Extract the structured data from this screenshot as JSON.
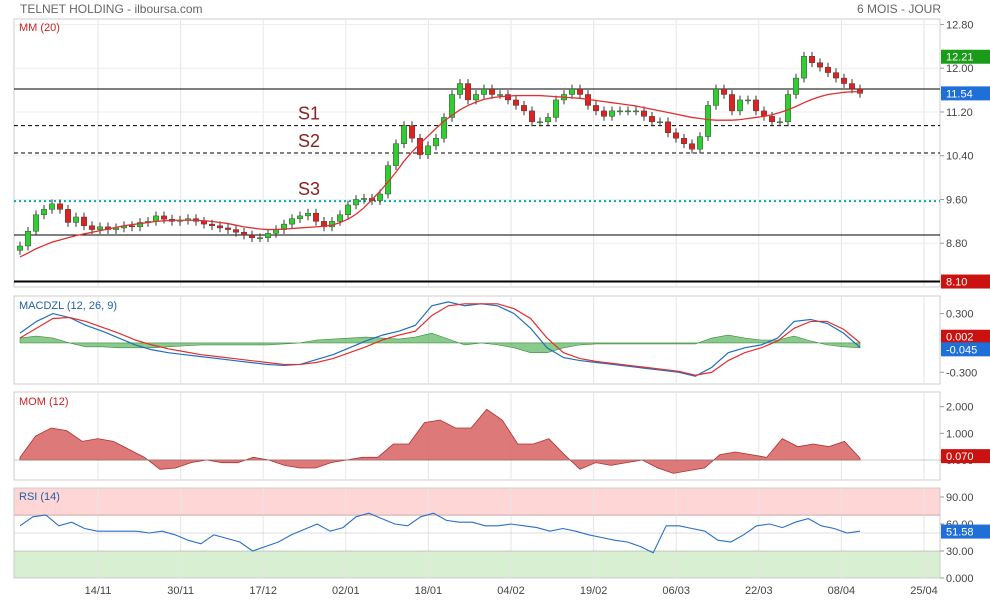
{
  "header": {
    "title": "TELNET HOLDING - ilboursa.com",
    "period": "6 MOIS - JOUR"
  },
  "colors": {
    "up": "#33cc33",
    "down": "#dd2222",
    "ma": "#e03030",
    "macd_line": "#1f6fc0",
    "signal_line": "#e03030",
    "histogram": "#4caf50",
    "mom_fill": "#d96a6a",
    "rsi_line": "#2a6fc9",
    "support": "#000000",
    "s3_line": "#00aaaa",
    "last_label": "#1e6fd8",
    "green_label": "#1a9c1a",
    "red_label": "#cc1111"
  },
  "x_axis": {
    "date_labels": [
      "14/11",
      "30/11",
      "17/12",
      "02/01",
      "18/01",
      "04/02",
      "19/02",
      "06/03",
      "22/03",
      "08/04",
      "25/04"
    ]
  },
  "chart_data": [
    {
      "type": "candlestick",
      "title": "MM (20)",
      "ylim": [
        8.0,
        12.9
      ],
      "y_ticks": [
        12.8,
        12.0,
        11.2,
        10.4,
        9.6,
        8.8
      ],
      "y_tick_labels": [
        "12.80",
        "12.00",
        "11.20",
        "10.40",
        "9.60",
        "8.80"
      ],
      "price_labels": [
        {
          "text": "12.21",
          "value": 12.21,
          "style": "green"
        },
        {
          "text": "11.54",
          "value": 11.54,
          "style": "blue"
        },
        {
          "text": "8.10",
          "value": 8.1,
          "style": "red"
        }
      ],
      "support_levels": [
        {
          "name": "S1",
          "value": 10.95,
          "style": "dashed"
        },
        {
          "name": "S2",
          "value": 10.45,
          "style": "dashed"
        },
        {
          "name": "S3",
          "value": 9.57,
          "style": "dotted"
        }
      ],
      "resistance_lines": [
        11.62,
        8.95,
        8.1
      ],
      "close": [
        8.75,
        9.02,
        9.32,
        9.42,
        9.52,
        9.42,
        9.18,
        9.28,
        9.12,
        9.05,
        9.1,
        9.05,
        9.08,
        9.12,
        9.1,
        9.18,
        9.2,
        9.3,
        9.24,
        9.2,
        9.22,
        9.25,
        9.2,
        9.15,
        9.12,
        9.08,
        9.05,
        9.0,
        8.95,
        8.9,
        8.9,
        8.98,
        9.05,
        9.15,
        9.25,
        9.3,
        9.35,
        9.2,
        9.1,
        9.2,
        9.32,
        9.5,
        9.6,
        9.62,
        9.58,
        9.7,
        10.22,
        10.62,
        10.95,
        10.72,
        10.42,
        10.58,
        10.72,
        11.1,
        11.52,
        11.72,
        11.42,
        11.52,
        11.62,
        11.52,
        11.52,
        11.42,
        11.32,
        11.22,
        11.02,
        11.02,
        11.1,
        11.42,
        11.52,
        11.62,
        11.52,
        11.32,
        11.22,
        11.12,
        11.22,
        11.22,
        11.22,
        11.22,
        11.12,
        11.02,
        11.02,
        10.82,
        10.72,
        10.62,
        10.52,
        10.75,
        11.32,
        11.62,
        11.52,
        11.22,
        11.42,
        11.42,
        11.22,
        11.12,
        11.02,
        11.02,
        11.52,
        11.82,
        12.22,
        12.1,
        12.02,
        11.92,
        11.82,
        11.72,
        11.62,
        11.54
      ],
      "ma20": [
        8.55,
        8.62,
        8.7,
        8.76,
        8.82,
        8.86,
        8.9,
        8.94,
        8.97,
        9.0,
        9.03,
        9.06,
        9.09,
        9.12,
        9.14,
        9.16,
        9.18,
        9.2,
        9.21,
        9.22,
        9.22,
        9.22,
        9.22,
        9.21,
        9.2,
        9.18,
        9.16,
        9.13,
        9.1,
        9.08,
        9.06,
        9.05,
        9.05,
        9.06,
        9.07,
        9.08,
        9.09,
        9.1,
        9.11,
        9.13,
        9.18,
        9.24,
        9.33,
        9.45,
        9.6,
        9.75,
        9.92,
        10.1,
        10.3,
        10.47,
        10.62,
        10.76,
        10.9,
        11.03,
        11.14,
        11.24,
        11.32,
        11.38,
        11.43,
        11.46,
        11.48,
        11.49,
        11.5,
        11.5,
        11.5,
        11.5,
        11.49,
        11.48,
        11.47,
        11.46,
        11.45,
        11.43,
        11.41,
        11.39,
        11.37,
        11.35,
        11.33,
        11.31,
        11.28,
        11.25,
        11.22,
        11.19,
        11.16,
        11.13,
        11.1,
        11.08,
        11.06,
        11.05,
        11.05,
        11.05,
        11.06,
        11.08,
        11.1,
        11.12,
        11.15,
        11.19,
        11.24,
        11.3,
        11.37,
        11.43,
        11.48,
        11.52,
        11.54,
        11.56,
        11.57,
        11.57
      ]
    },
    {
      "type": "line",
      "title": "MACDZL (12, 26, 9)",
      "ylim": [
        -0.42,
        0.48
      ],
      "y_ticks": [
        0.3,
        -0.3
      ],
      "y_tick_labels": [
        "0.300",
        "-0.300"
      ],
      "last_labels": [
        {
          "text": "-0.045",
          "value": -0.045,
          "style": "blue"
        },
        {
          "text": "0.002",
          "value": 0.002,
          "style": "red"
        }
      ],
      "series": [
        {
          "role": "macd",
          "values": [
            0.1,
            0.22,
            0.3,
            0.26,
            0.18,
            0.12,
            0.05,
            -0.02,
            -0.07,
            -0.1,
            -0.12,
            -0.14,
            -0.16,
            -0.18,
            -0.2,
            -0.22,
            -0.23,
            -0.22,
            -0.17,
            -0.12,
            -0.05,
            0.02,
            0.08,
            0.12,
            0.18,
            0.38,
            0.42,
            0.38,
            0.4,
            0.38,
            0.3,
            0.15,
            -0.05,
            -0.15,
            -0.18,
            -0.2,
            -0.22,
            -0.24,
            -0.26,
            -0.28,
            -0.3,
            -0.34,
            -0.25,
            -0.1,
            -0.05,
            -0.02,
            0.05,
            0.22,
            0.24,
            0.2,
            0.1,
            -0.045
          ]
        },
        {
          "role": "signal",
          "values": [
            0.05,
            0.15,
            0.25,
            0.26,
            0.22,
            0.16,
            0.1,
            0.03,
            -0.02,
            -0.06,
            -0.09,
            -0.12,
            -0.14,
            -0.16,
            -0.18,
            -0.2,
            -0.22,
            -0.22,
            -0.2,
            -0.16,
            -0.1,
            -0.04,
            0.03,
            0.08,
            0.12,
            0.28,
            0.38,
            0.4,
            0.4,
            0.4,
            0.35,
            0.25,
            0.05,
            -0.1,
            -0.16,
            -0.19,
            -0.21,
            -0.23,
            -0.25,
            -0.27,
            -0.29,
            -0.33,
            -0.3,
            -0.18,
            -0.1,
            -0.05,
            0.02,
            0.15,
            0.22,
            0.22,
            0.14,
            0.002
          ]
        }
      ],
      "histogram": [
        0.05,
        0.07,
        0.05,
        0.0,
        -0.04,
        -0.04,
        -0.05,
        -0.05,
        -0.05,
        -0.04,
        -0.03,
        -0.02,
        -0.02,
        -0.02,
        -0.02,
        -0.02,
        -0.01,
        0.0,
        0.03,
        0.04,
        0.05,
        0.06,
        0.05,
        0.04,
        0.06,
        0.1,
        0.04,
        -0.02,
        0.0,
        -0.02,
        -0.05,
        -0.1,
        -0.1,
        -0.05,
        -0.02,
        -0.01,
        -0.01,
        -0.01,
        -0.01,
        -0.01,
        -0.01,
        -0.01,
        0.05,
        0.08,
        0.05,
        0.03,
        0.03,
        0.07,
        0.02,
        -0.02,
        -0.04,
        -0.05
      ]
    },
    {
      "type": "area",
      "title": "MOM (12)",
      "ylim": [
        -0.75,
        2.55
      ],
      "y_ticks": [
        2.0,
        1.0,
        0.0
      ],
      "y_tick_labels": [
        "2.000",
        "1.000",
        "0.000"
      ],
      "last_labels": [
        {
          "text": "0.070",
          "value": 0.07,
          "style": "red"
        }
      ],
      "values": [
        0.1,
        0.9,
        1.2,
        1.1,
        0.7,
        0.8,
        0.7,
        0.4,
        0.1,
        -0.35,
        -0.3,
        -0.1,
        0.0,
        -0.1,
        -0.1,
        0.1,
        0.0,
        -0.2,
        -0.3,
        -0.3,
        -0.1,
        0.0,
        0.1,
        0.1,
        0.6,
        0.6,
        1.4,
        1.5,
        1.2,
        1.2,
        1.9,
        1.5,
        0.6,
        0.6,
        0.8,
        0.2,
        -0.35,
        -0.1,
        -0.2,
        -0.1,
        0.0,
        -0.3,
        -0.5,
        -0.4,
        -0.3,
        0.2,
        0.3,
        0.2,
        0.1,
        0.8,
        0.5,
        0.6,
        0.5,
        0.7,
        0.07
      ]
    },
    {
      "type": "line",
      "title": "RSI (14)",
      "ylim": [
        0,
        100
      ],
      "y_ticks": [
        90,
        60,
        30,
        0
      ],
      "y_tick_labels": [
        "90.00",
        "60.00",
        "30.00",
        "0.000"
      ],
      "bands": {
        "overbought": 70,
        "oversold": 30
      },
      "last_labels": [
        {
          "text": "51.58",
          "value": 51.58,
          "style": "blue"
        }
      ],
      "values": [
        58,
        68,
        70,
        58,
        62,
        55,
        52,
        52,
        52,
        52,
        50,
        52,
        48,
        42,
        38,
        48,
        44,
        40,
        30,
        35,
        40,
        48,
        54,
        60,
        52,
        56,
        68,
        72,
        66,
        60,
        58,
        68,
        72,
        64,
        62,
        62,
        58,
        58,
        60,
        58,
        56,
        52,
        55,
        52,
        48,
        45,
        42,
        40,
        35,
        28,
        58,
        58,
        55,
        52,
        42,
        40,
        48,
        58,
        60,
        56,
        62,
        66,
        58,
        55,
        50,
        52
      ]
    }
  ]
}
